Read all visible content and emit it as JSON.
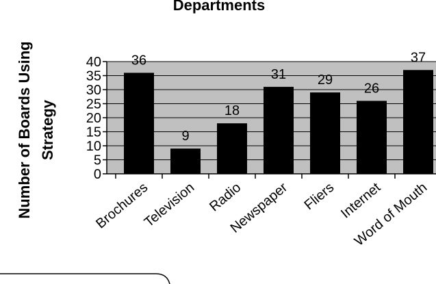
{
  "chart_data": {
    "type": "bar",
    "title": "Departments",
    "ylabel_lines": [
      "Number of Boards Using",
      "Strategy"
    ],
    "xlabel": "",
    "categories": [
      "Brochures",
      "Television",
      "Radio",
      "Newspaper",
      "Fliers",
      "Internet",
      "Word of Mouth"
    ],
    "values": [
      36,
      9,
      18,
      31,
      29,
      26,
      37
    ],
    "data_labels": [
      "36",
      "9",
      "18",
      "31",
      "29",
      "26",
      "37"
    ],
    "ylim": [
      0,
      40
    ],
    "yticks": [
      0,
      5,
      10,
      15,
      20,
      25,
      30,
      35,
      40
    ],
    "grid": true,
    "legend": "none",
    "colors": {
      "plot_background": "#c0c0c0",
      "bar_fill": "#000000",
      "gridline": "#000000",
      "axis": "#000000"
    }
  }
}
